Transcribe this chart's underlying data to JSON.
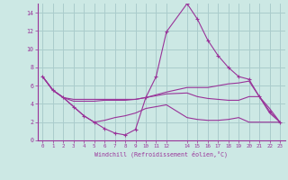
{
  "background_color": "#cce8e4",
  "grid_color": "#aacccc",
  "line_color": "#993399",
  "marker_color": "#993399",
  "xlabel": "Windchill (Refroidissement éolien,°C)",
  "xlabel_color": "#993399",
  "xlim": [
    -0.5,
    23.5
  ],
  "ylim": [
    0,
    15
  ],
  "xticks": [
    0,
    1,
    2,
    3,
    4,
    5,
    6,
    7,
    8,
    9,
    10,
    11,
    12,
    14,
    15,
    16,
    17,
    18,
    19,
    20,
    21,
    22,
    23
  ],
  "yticks": [
    0,
    2,
    4,
    6,
    8,
    10,
    12,
    14
  ],
  "series": [
    {
      "x": [
        0,
        1,
        2,
        3,
        4,
        5,
        6,
        7,
        8,
        9,
        10,
        11,
        12,
        14,
        15,
        16,
        17,
        18,
        19,
        20,
        21,
        22,
        23
      ],
      "y": [
        7.0,
        5.5,
        4.7,
        3.7,
        2.7,
        2.0,
        1.3,
        0.8,
        0.6,
        1.2,
        4.7,
        7.0,
        11.9,
        15.0,
        13.3,
        11.0,
        9.3,
        8.0,
        7.0,
        6.7,
        4.8,
        3.2,
        2.0
      ],
      "marker": "+"
    },
    {
      "x": [
        0,
        1,
        2,
        3,
        4,
        5,
        6,
        7,
        8,
        9,
        10,
        11,
        12,
        14,
        15,
        16,
        17,
        18,
        19,
        20,
        21,
        22,
        23
      ],
      "y": [
        7.0,
        5.5,
        4.7,
        4.5,
        4.5,
        4.5,
        4.5,
        4.5,
        4.5,
        4.5,
        4.7,
        5.0,
        5.3,
        5.8,
        5.8,
        5.8,
        6.0,
        6.2,
        6.3,
        6.5,
        4.8,
        3.5,
        2.0
      ],
      "marker": null
    },
    {
      "x": [
        0,
        1,
        2,
        3,
        4,
        5,
        6,
        7,
        8,
        9,
        10,
        11,
        12,
        14,
        15,
        16,
        17,
        18,
        19,
        20,
        21,
        22,
        23
      ],
      "y": [
        7.0,
        5.5,
        4.7,
        4.3,
        4.3,
        4.3,
        4.4,
        4.4,
        4.4,
        4.5,
        4.7,
        4.9,
        5.1,
        5.2,
        4.8,
        4.6,
        4.5,
        4.4,
        4.4,
        4.8,
        4.8,
        3.0,
        2.0
      ],
      "marker": null
    },
    {
      "x": [
        0,
        1,
        2,
        3,
        4,
        5,
        6,
        7,
        8,
        9,
        10,
        11,
        12,
        14,
        15,
        16,
        17,
        18,
        19,
        20,
        21,
        22,
        23
      ],
      "y": [
        7.0,
        5.5,
        4.7,
        3.7,
        2.7,
        2.0,
        2.2,
        2.5,
        2.7,
        3.0,
        3.5,
        3.7,
        3.9,
        2.5,
        2.3,
        2.2,
        2.2,
        2.3,
        2.5,
        2.0,
        2.0,
        2.0,
        2.0
      ],
      "marker": null
    }
  ]
}
